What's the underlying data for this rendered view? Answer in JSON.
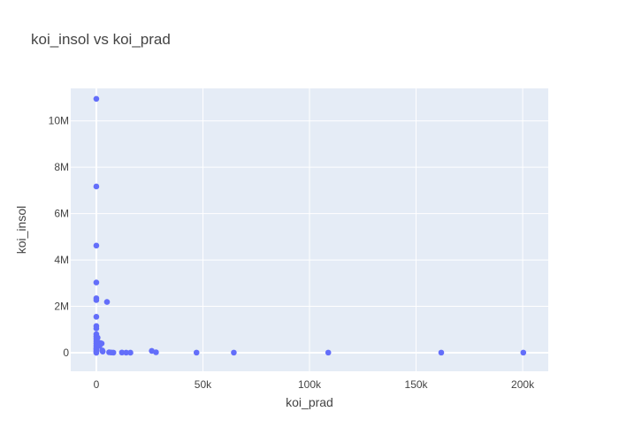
{
  "chart_data": {
    "type": "scatter",
    "title": "koi_insol vs koi_prad",
    "xlabel": "koi_prad",
    "ylabel": "koi_insol",
    "xlim": [
      -12000,
      212000
    ],
    "ylim": [
      -800000,
      11400000
    ],
    "x_ticks": [
      0,
      50000,
      100000,
      150000,
      200000
    ],
    "x_tick_labels": [
      "0",
      "50k",
      "100k",
      "150k",
      "200k"
    ],
    "y_ticks": [
      0,
      2000000,
      4000000,
      6000000,
      8000000,
      10000000
    ],
    "y_tick_labels": [
      "0",
      "2M",
      "4M",
      "6M",
      "8M",
      "10M"
    ],
    "grid": true,
    "colors": {
      "marker": "#636efa",
      "plot_bg": "#e5ecf6",
      "grid": "#ffffff"
    },
    "series": [
      {
        "points": [
          [
            0,
            10950000
          ],
          [
            0,
            7170000
          ],
          [
            0,
            4620000
          ],
          [
            0,
            3030000
          ],
          [
            0,
            2350000
          ],
          [
            0,
            2270000
          ],
          [
            0,
            1550000
          ],
          [
            0,
            1150000
          ],
          [
            0,
            1050000
          ],
          [
            0,
            800000
          ],
          [
            0,
            700000
          ],
          [
            0,
            600000
          ],
          [
            0,
            500000
          ],
          [
            0,
            400000
          ],
          [
            0,
            300000
          ],
          [
            0,
            200000
          ],
          [
            0,
            150000
          ],
          [
            0,
            80000
          ],
          [
            0,
            30000
          ],
          [
            0,
            0
          ],
          [
            600,
            650000
          ],
          [
            800,
            450000
          ],
          [
            1000,
            350000
          ],
          [
            1500,
            300000
          ],
          [
            1800,
            420000
          ],
          [
            2500,
            400000
          ],
          [
            2800,
            100000
          ],
          [
            3000,
            50000
          ],
          [
            5000,
            2190000
          ],
          [
            6000,
            20000
          ],
          [
            7000,
            10000
          ],
          [
            8000,
            5000
          ],
          [
            12000,
            10000
          ],
          [
            14000,
            5000
          ],
          [
            16000,
            3000
          ],
          [
            26000,
            80000
          ],
          [
            28000,
            20000
          ],
          [
            47000,
            5000
          ],
          [
            64500,
            5000
          ],
          [
            108800,
            5000
          ],
          [
            161800,
            5000
          ],
          [
            200300,
            5000
          ]
        ]
      }
    ]
  }
}
